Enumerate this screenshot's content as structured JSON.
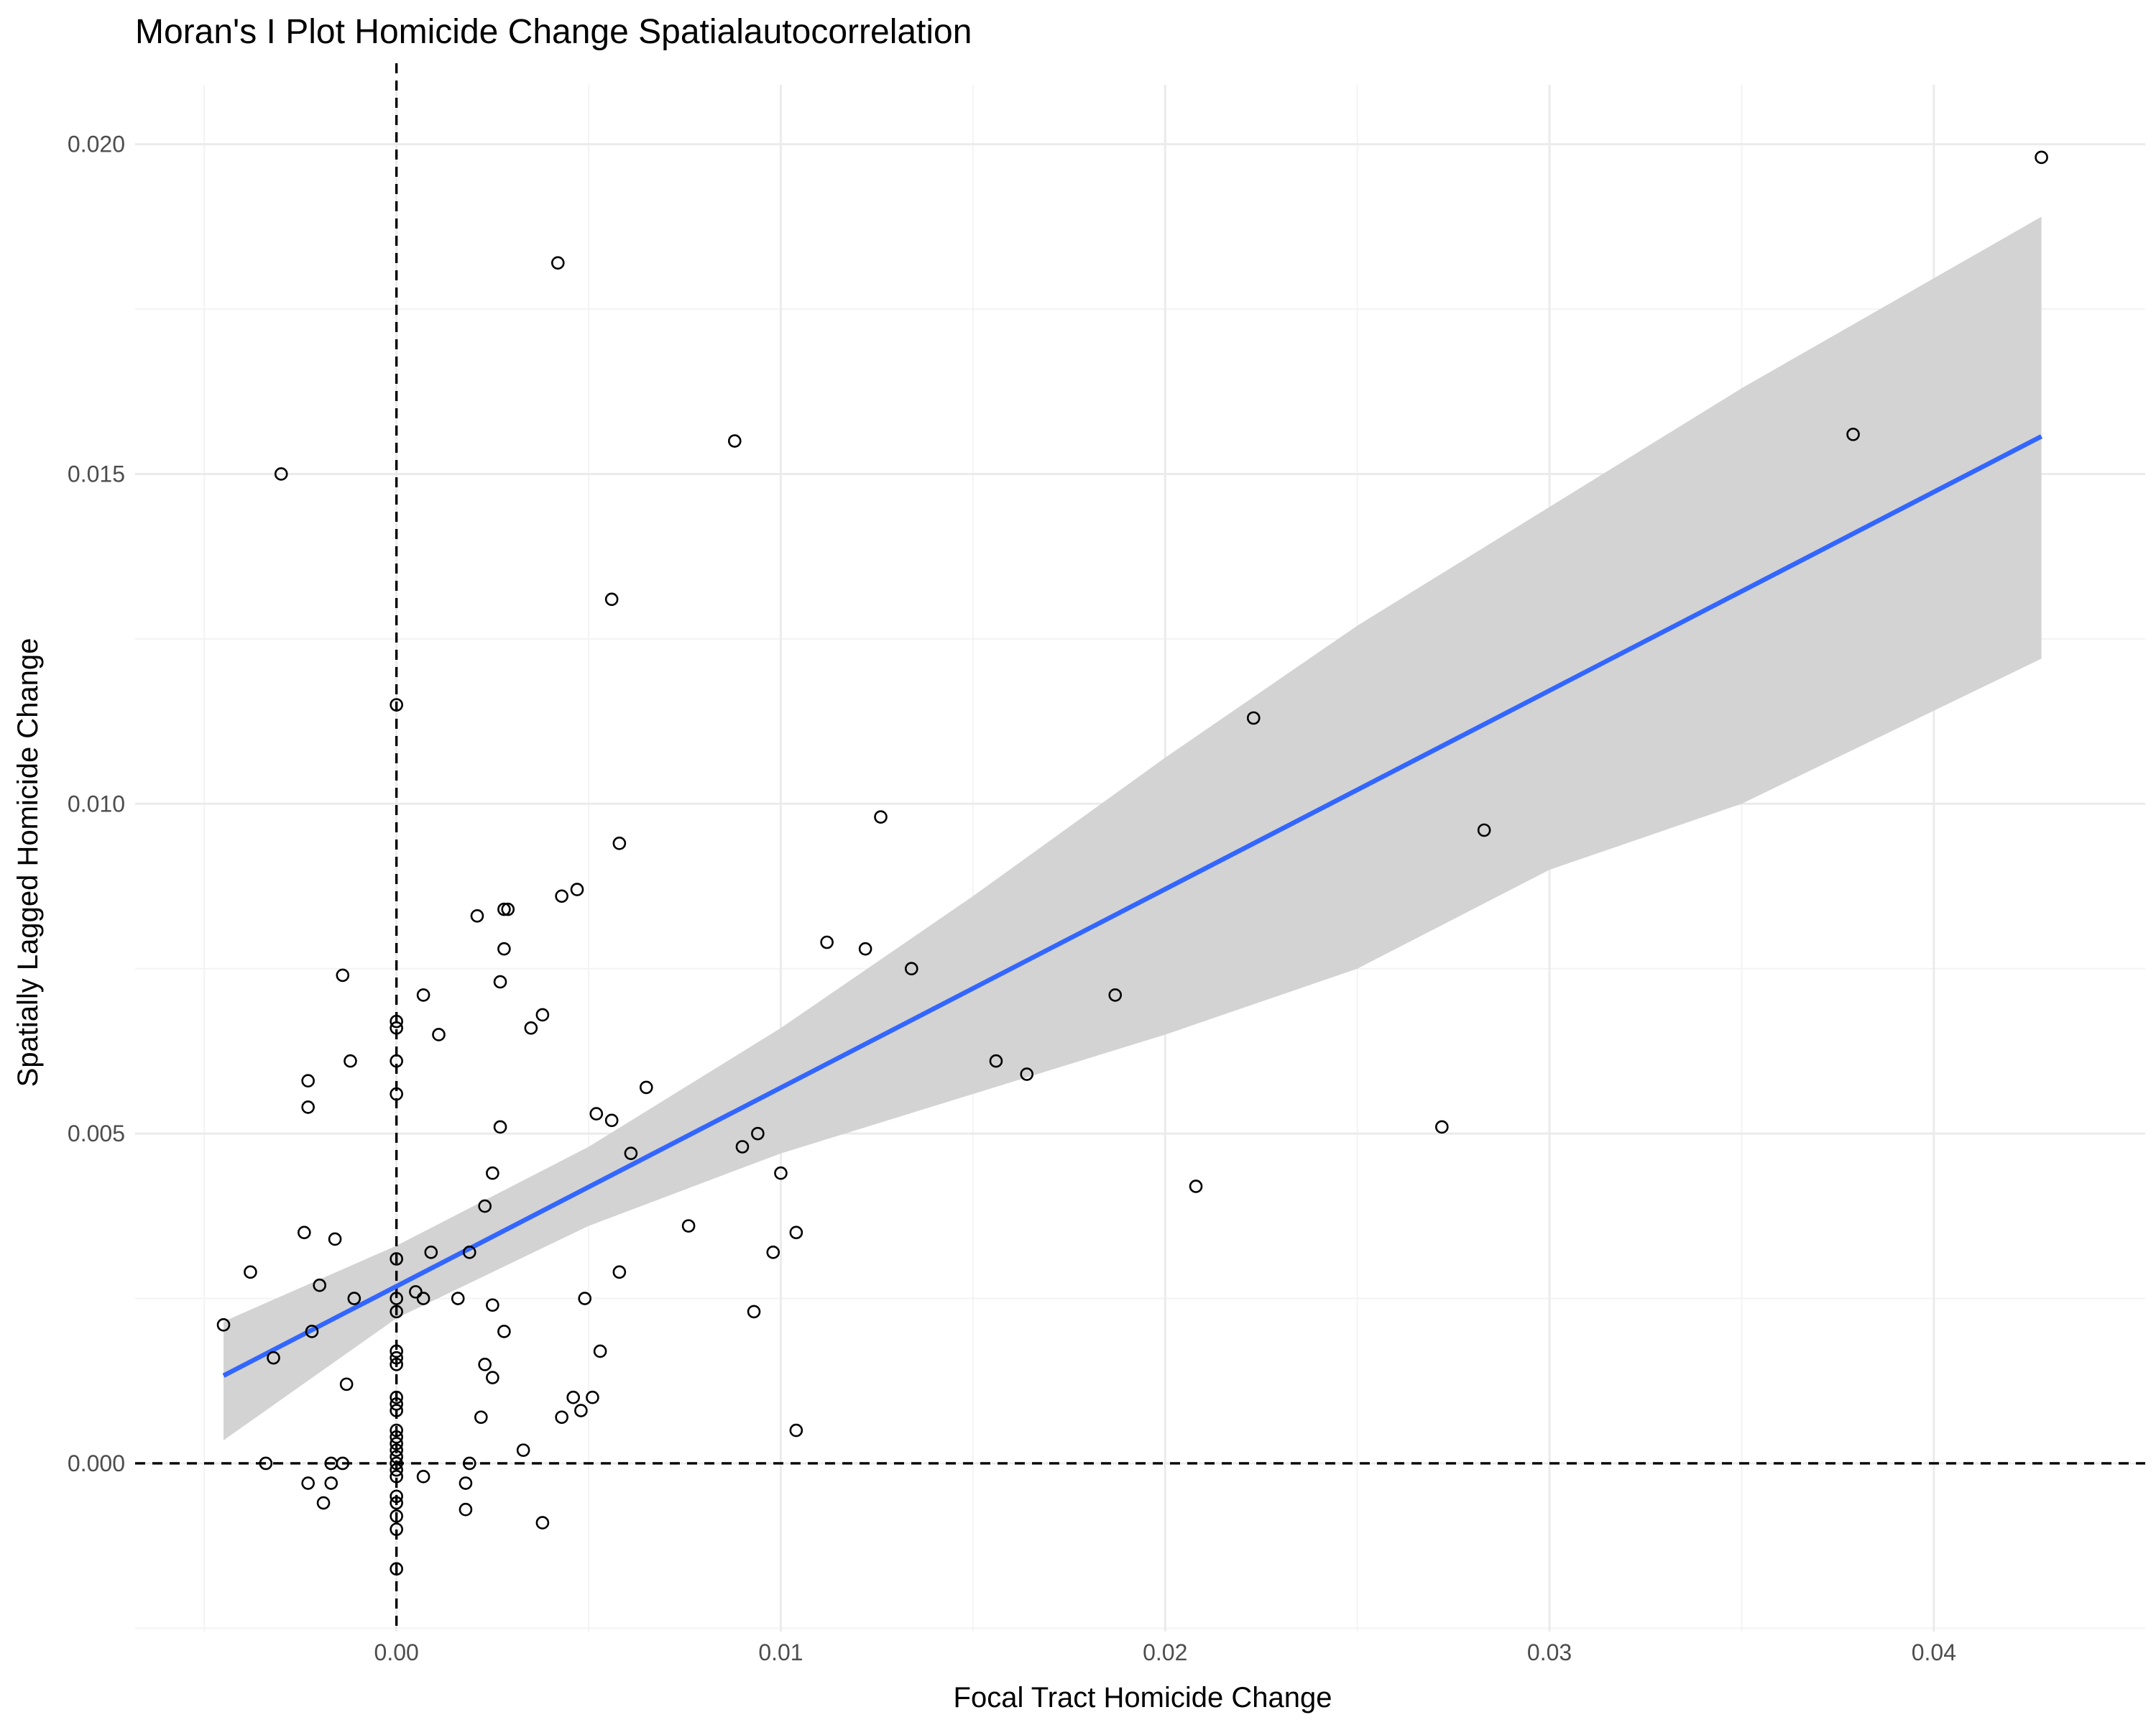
{
  "chart_data": {
    "type": "scatter",
    "title": "Moran's I Plot Homicide Change Spatialautocorrelation",
    "xlabel": "Focal Tract Homicide Change",
    "ylabel": "Spatially Lagged Homicide Change",
    "xlim": [
      -0.0068,
      0.0455
    ],
    "ylim": [
      -0.00255,
      0.0209
    ],
    "x_ticks": [
      {
        "value": 0.0,
        "label": "0.00"
      },
      {
        "value": 0.01,
        "label": "0.01"
      },
      {
        "value": 0.02,
        "label": "0.02"
      },
      {
        "value": 0.03,
        "label": "0.03"
      },
      {
        "value": 0.04,
        "label": "0.04"
      }
    ],
    "y_ticks": [
      {
        "value": 0.0,
        "label": "0.000"
      },
      {
        "value": 0.005,
        "label": "0.005"
      },
      {
        "value": 0.01,
        "label": "0.010"
      },
      {
        "value": 0.015,
        "label": "0.015"
      },
      {
        "value": 0.02,
        "label": "0.020"
      }
    ],
    "x_minor": [
      -0.005,
      0.005,
      0.015,
      0.025,
      0.035
    ],
    "y_minor": [
      -0.0025,
      0.0025,
      0.0075,
      0.0125,
      0.0175
    ],
    "grid": true,
    "reference_lines": {
      "x": 0.0,
      "y": 0.0,
      "style": "dashed"
    },
    "points": [
      {
        "x": 0.0428,
        "y": 0.0198
      },
      {
        "x": 0.0379,
        "y": 0.0156
      },
      {
        "x": 0.0283,
        "y": 0.0096
      },
      {
        "x": 0.0272,
        "y": 0.0051
      },
      {
        "x": 0.0223,
        "y": 0.0113
      },
      {
        "x": 0.0208,
        "y": 0.0042
      },
      {
        "x": 0.0187,
        "y": 0.0071
      },
      {
        "x": 0.0164,
        "y": 0.0059
      },
      {
        "x": 0.0156,
        "y": 0.0061
      },
      {
        "x": 0.0134,
        "y": 0.0075
      },
      {
        "x": 0.0126,
        "y": 0.0098
      },
      {
        "x": 0.0122,
        "y": 0.0078
      },
      {
        "x": 0.0112,
        "y": 0.0079
      },
      {
        "x": 0.0104,
        "y": 0.0035
      },
      {
        "x": 0.0104,
        "y": 0.0005
      },
      {
        "x": 0.01,
        "y": 0.0044
      },
      {
        "x": 0.0098,
        "y": 0.0032
      },
      {
        "x": 0.0094,
        "y": 0.005
      },
      {
        "x": 0.0093,
        "y": 0.0023
      },
      {
        "x": 0.009,
        "y": 0.0048
      },
      {
        "x": 0.0088,
        "y": 0.0155
      },
      {
        "x": 0.0076,
        "y": 0.0036
      },
      {
        "x": 0.0065,
        "y": 0.0057
      },
      {
        "x": 0.0061,
        "y": 0.0047
      },
      {
        "x": 0.0058,
        "y": 0.0094
      },
      {
        "x": 0.0058,
        "y": 0.0029
      },
      {
        "x": 0.0056,
        "y": 0.0131
      },
      {
        "x": 0.0056,
        "y": 0.0052
      },
      {
        "x": 0.0053,
        "y": 0.0017
      },
      {
        "x": 0.0052,
        "y": 0.0053
      },
      {
        "x": 0.0051,
        "y": 0.001
      },
      {
        "x": 0.0049,
        "y": 0.0025
      },
      {
        "x": 0.0048,
        "y": 0.0008
      },
      {
        "x": 0.0047,
        "y": 0.0087
      },
      {
        "x": 0.0046,
        "y": 0.001
      },
      {
        "x": 0.0043,
        "y": 0.0086
      },
      {
        "x": 0.0043,
        "y": 0.0007
      },
      {
        "x": 0.0042,
        "y": 0.0182
      },
      {
        "x": 0.0038,
        "y": 0.0068
      },
      {
        "x": 0.0038,
        "y": -0.0009
      },
      {
        "x": 0.0035,
        "y": 0.0066
      },
      {
        "x": 0.0033,
        "y": 0.0002
      },
      {
        "x": 0.0029,
        "y": 0.0084
      },
      {
        "x": 0.0028,
        "y": 0.0084
      },
      {
        "x": 0.0028,
        "y": 0.0078
      },
      {
        "x": 0.0028,
        "y": 0.002
      },
      {
        "x": 0.0027,
        "y": 0.0073
      },
      {
        "x": 0.0027,
        "y": 0.0051
      },
      {
        "x": 0.0025,
        "y": 0.0044
      },
      {
        "x": 0.0025,
        "y": 0.0024
      },
      {
        "x": 0.0025,
        "y": 0.0013
      },
      {
        "x": 0.0023,
        "y": 0.0039
      },
      {
        "x": 0.0023,
        "y": 0.0015
      },
      {
        "x": 0.0022,
        "y": 0.0007
      },
      {
        "x": 0.0021,
        "y": 0.0083
      },
      {
        "x": 0.0019,
        "y": 0.0032
      },
      {
        "x": 0.0019,
        "y": 0.0
      },
      {
        "x": 0.0018,
        "y": -0.0003
      },
      {
        "x": 0.0018,
        "y": -0.0007
      },
      {
        "x": 0.0016,
        "y": 0.0025
      },
      {
        "x": 0.0011,
        "y": 0.0065
      },
      {
        "x": 0.0009,
        "y": 0.0032
      },
      {
        "x": 0.0007,
        "y": 0.0071
      },
      {
        "x": 0.0007,
        "y": 0.0025
      },
      {
        "x": 0.0007,
        "y": -0.0002
      },
      {
        "x": 0.0005,
        "y": 0.0026
      },
      {
        "x": 0.0,
        "y": 0.0115
      },
      {
        "x": 0.0,
        "y": 0.0067
      },
      {
        "x": 0.0,
        "y": 0.0066
      },
      {
        "x": 0.0,
        "y": 0.0061
      },
      {
        "x": 0.0,
        "y": 0.0056
      },
      {
        "x": 0.0,
        "y": 0.0031
      },
      {
        "x": 0.0,
        "y": 0.0025
      },
      {
        "x": 0.0,
        "y": 0.0023
      },
      {
        "x": 0.0,
        "y": 0.0017
      },
      {
        "x": 0.0,
        "y": 0.0016
      },
      {
        "x": 0.0,
        "y": 0.0015
      },
      {
        "x": 0.0,
        "y": 0.001
      },
      {
        "x": 0.0,
        "y": 0.0009
      },
      {
        "x": 0.0,
        "y": 0.0008
      },
      {
        "x": 0.0,
        "y": 0.0005
      },
      {
        "x": 0.0,
        "y": 0.0004
      },
      {
        "x": 0.0,
        "y": 0.0003
      },
      {
        "x": 0.0,
        "y": 0.0002
      },
      {
        "x": 0.0,
        "y": 0.0001
      },
      {
        "x": 0.0,
        "y": 0.0
      },
      {
        "x": 0.0,
        "y": -0.0001
      },
      {
        "x": 0.0,
        "y": -0.0002
      },
      {
        "x": 0.0,
        "y": -0.0005
      },
      {
        "x": 0.0,
        "y": -0.0006
      },
      {
        "x": 0.0,
        "y": -0.0008
      },
      {
        "x": 0.0,
        "y": -0.001
      },
      {
        "x": 0.0,
        "y": -0.0016
      },
      {
        "x": -0.0011,
        "y": 0.0025
      },
      {
        "x": -0.0012,
        "y": 0.0061
      },
      {
        "x": -0.0013,
        "y": 0.0012
      },
      {
        "x": -0.0014,
        "y": 0.0074
      },
      {
        "x": -0.0014,
        "y": 0.0
      },
      {
        "x": -0.0016,
        "y": 0.0034
      },
      {
        "x": -0.0017,
        "y": 0.0
      },
      {
        "x": -0.0017,
        "y": -0.0003
      },
      {
        "x": -0.0019,
        "y": -0.0006
      },
      {
        "x": -0.002,
        "y": 0.0027
      },
      {
        "x": -0.0022,
        "y": 0.002
      },
      {
        "x": -0.0023,
        "y": 0.0058
      },
      {
        "x": -0.0023,
        "y": 0.0054
      },
      {
        "x": -0.0023,
        "y": -0.0003
      },
      {
        "x": -0.0024,
        "y": 0.0035
      },
      {
        "x": -0.003,
        "y": 0.015
      },
      {
        "x": -0.0032,
        "y": 0.0016
      },
      {
        "x": -0.0034,
        "y": 0.0
      },
      {
        "x": -0.0038,
        "y": 0.0029
      },
      {
        "x": -0.0045,
        "y": 0.0021
      }
    ],
    "fit": {
      "method": "linear",
      "line": [
        {
          "x": -0.0045,
          "y": 0.00133
        },
        {
          "x": 0.0428,
          "y": 0.01557
        }
      ],
      "confidence_band": [
        {
          "x": -0.0045,
          "lo": 0.00035,
          "hi": 0.00215
        },
        {
          "x": 0.0,
          "lo": 0.0022,
          "hi": 0.0033
        },
        {
          "x": 0.005,
          "lo": 0.0036,
          "hi": 0.0048
        },
        {
          "x": 0.01,
          "lo": 0.0047,
          "hi": 0.0066
        },
        {
          "x": 0.015,
          "lo": 0.0056,
          "hi": 0.0086
        },
        {
          "x": 0.02,
          "lo": 0.0065,
          "hi": 0.0107
        },
        {
          "x": 0.025,
          "lo": 0.0075,
          "hi": 0.0127
        },
        {
          "x": 0.03,
          "lo": 0.009,
          "hi": 0.0145
        },
        {
          "x": 0.035,
          "lo": 0.01,
          "hi": 0.0163
        },
        {
          "x": 0.0428,
          "lo": 0.0122,
          "hi": 0.0189
        }
      ],
      "line_color": "#3366ff",
      "band_color": "#d3d3d3"
    },
    "point_color": "#000000"
  }
}
